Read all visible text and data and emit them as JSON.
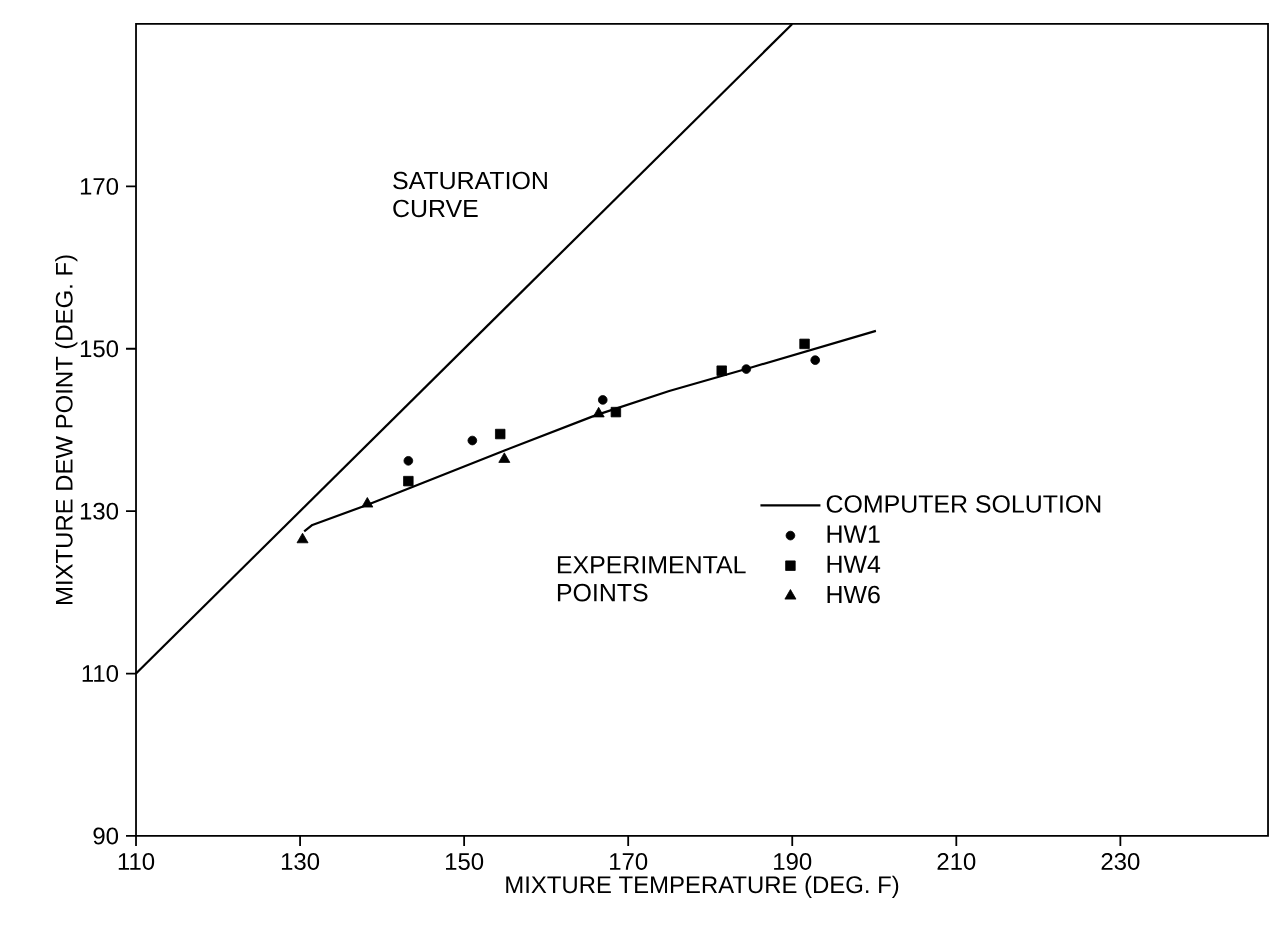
{
  "chart_data": {
    "type": "scatter",
    "xlabel": "MIXTURE TEMPERATURE (DEG. F)",
    "ylabel": "MIXTURE DEW POINT (DEG. F)",
    "xlim": [
      110,
      248
    ],
    "ylim": [
      90,
      190
    ],
    "xticks": [
      110,
      130,
      150,
      170,
      190,
      210,
      230
    ],
    "yticks": [
      90,
      110,
      130,
      150,
      170
    ],
    "legend": "right",
    "grid": false,
    "annotations": [
      "EXPERIMENTAL POINTS"
    ],
    "series": [
      {
        "name": "SATURATION CURVE",
        "type": "line",
        "color": "#000000",
        "marker": "none",
        "x": [
          110,
          190
        ],
        "values": [
          110,
          190
        ]
      },
      {
        "name": "COMPUTER SOLUTION",
        "type": "line",
        "color": "#000000",
        "marker": "none",
        "x": [
          130.5,
          131.5,
          138,
          145,
          155,
          166,
          175,
          185,
          200.2
        ],
        "values": [
          127.5,
          128.3,
          130.7,
          133.5,
          137.5,
          141.8,
          144.8,
          147.7,
          152.2
        ]
      },
      {
        "name": "HW1",
        "color": "#000000",
        "marker": "circle",
        "x": [
          143.2,
          151.0,
          166.9,
          184.4,
          192.8
        ],
        "values": [
          136.2,
          138.7,
          143.7,
          147.5,
          148.6
        ]
      },
      {
        "name": "HW4",
        "color": "#000000",
        "marker": "square",
        "x": [
          143.2,
          154.4,
          168.5,
          181.4,
          191.5
        ],
        "values": [
          133.7,
          139.5,
          142.2,
          147.3,
          150.6
        ]
      },
      {
        "name": "HW6",
        "color": "#000000",
        "marker": "triangle",
        "x": [
          130.3,
          138.2,
          154.9,
          166.4
        ],
        "values": [
          126.5,
          130.9,
          136.4,
          142.0
        ]
      }
    ]
  }
}
